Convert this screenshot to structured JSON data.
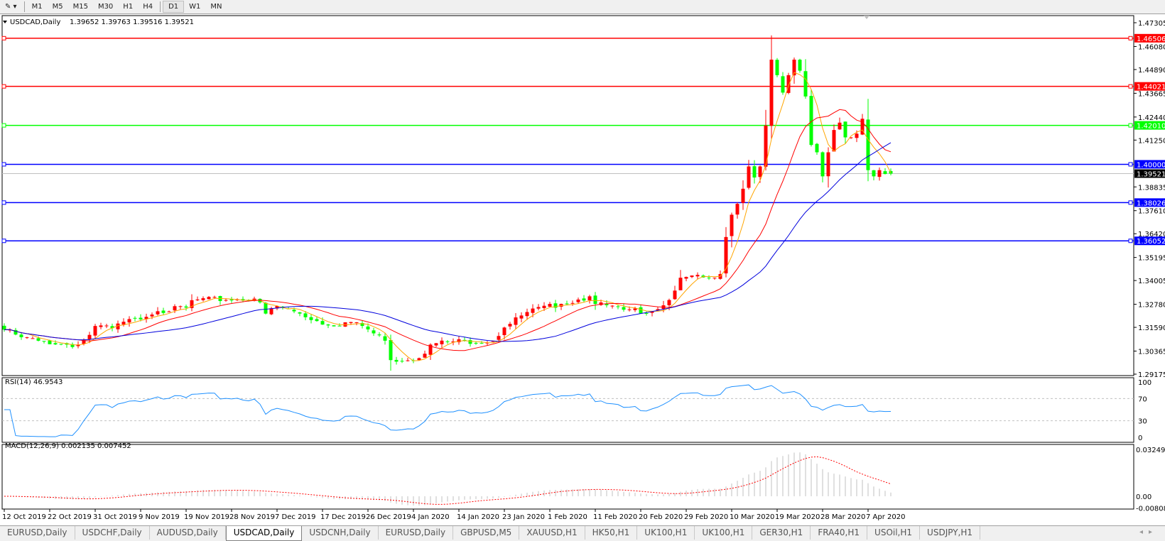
{
  "toolbar": {
    "periods": [
      "M1",
      "M5",
      "M15",
      "M30",
      "H1",
      "H4",
      "D1",
      "W1",
      "MN"
    ],
    "active_period": "D1"
  },
  "chart": {
    "title": "USDCAD,Daily",
    "ohlc_text": "1.39652 1.39763 1.39516 1.39521",
    "colors": {
      "bull": "#ff0000",
      "bear": "#00ff00",
      "ma_fast": "#ffa500",
      "ma_mid": "#ff0000",
      "ma_slow": "#0000dd",
      "rsi": "#1e90ff",
      "macd_hist": "#c0c0c0",
      "macd_signal": "#ff0000"
    }
  },
  "price_axis": {
    "ticks": [
      "1.47305",
      "1.46080",
      "1.44890",
      "1.43665",
      "1.42440",
      "1.41250",
      "1.38835",
      "1.37610",
      "1.36420",
      "1.35195",
      "1.34005",
      "1.32780",
      "1.31590",
      "1.30365",
      "1.29175"
    ],
    "range": [
      1.29175,
      1.47305
    ]
  },
  "levels": [
    {
      "price": "1.46506",
      "color": "#ff0000"
    },
    {
      "price": "1.44021",
      "color": "#ff0000"
    },
    {
      "price": "1.42010",
      "color": "#00ff00"
    },
    {
      "price": "1.40000",
      "color": "#0000ff"
    },
    {
      "price": "1.38026",
      "color": "#0000ff"
    },
    {
      "price": "1.36052",
      "color": "#0000ff"
    }
  ],
  "bid": {
    "price": "1.39521",
    "color": "#000000"
  },
  "rsi": {
    "label": "RSI(14) 46.9543",
    "ticks": [
      "100",
      "70",
      "30",
      "0"
    ]
  },
  "macd": {
    "label": "MACD(12,26,9) 0.002135 0.007452",
    "ticks": [
      "0.032493",
      "0.00",
      "-0.008086"
    ],
    "range": [
      -0.008086,
      0.032493
    ]
  },
  "date_axis": [
    "12 Oct 2019",
    "22 Oct 2019",
    "31 Oct 2019",
    "9 Nov 2019",
    "19 Nov 2019",
    "28 Nov 2019",
    "7 Dec 2019",
    "17 Dec 2019",
    "26 Dec 2019",
    "4 Jan 2020",
    "14 Jan 2020",
    "23 Jan 2020",
    "1 Feb 2020",
    "11 Feb 2020",
    "20 Feb 2020",
    "29 Feb 2020",
    "10 Mar 2020",
    "19 Mar 2020",
    "28 Mar 2020",
    "7 Apr 2020"
  ],
  "close_keypoints": [
    [
      0,
      1.3147
    ],
    [
      3,
      1.3108
    ],
    [
      6,
      1.309
    ],
    [
      11,
      1.307
    ],
    [
      13,
      1.307
    ],
    [
      15,
      1.312
    ],
    [
      16,
      1.3166
    ],
    [
      19,
      1.3155
    ],
    [
      23,
      1.3204
    ],
    [
      27,
      1.3242
    ],
    [
      32,
      1.3261
    ],
    [
      33,
      1.3299
    ],
    [
      44,
      1.3307
    ],
    [
      45,
      1.3288
    ],
    [
      46,
      1.323
    ],
    [
      48,
      1.3269
    ],
    [
      52,
      1.323
    ],
    [
      57,
      1.3169
    ],
    [
      60,
      1.3185
    ],
    [
      62,
      1.3185
    ],
    [
      65,
      1.3128
    ],
    [
      67,
      1.309
    ],
    [
      68,
      1.299
    ],
    [
      73,
      1.3
    ],
    [
      75,
      1.307
    ],
    [
      78,
      1.3085
    ],
    [
      86,
      1.309
    ],
    [
      88,
      1.3158
    ],
    [
      92,
      1.3238
    ],
    [
      98,
      1.328
    ],
    [
      103,
      1.3319
    ],
    [
      104,
      1.328
    ],
    [
      109,
      1.325
    ],
    [
      114,
      1.3242
    ],
    [
      117,
      1.33
    ],
    [
      119,
      1.3415
    ],
    [
      125,
      1.3415
    ],
    [
      126,
      1.3434
    ],
    [
      127,
      1.3625
    ],
    [
      128,
      1.374
    ],
    [
      130,
      1.3874
    ],
    [
      131,
      1.3989
    ],
    [
      132,
      1.3932
    ],
    [
      133,
      1.3989
    ],
    [
      134,
      1.42
    ],
    [
      135,
      1.454
    ],
    [
      136,
      1.446
    ],
    [
      137,
      1.437
    ],
    [
      138,
      1.446
    ],
    [
      139,
      1.454
    ],
    [
      140,
      1.4483
    ],
    [
      141,
      1.435
    ],
    [
      142,
      1.41
    ],
    [
      143,
      1.4062
    ],
    [
      144,
      1.3938
    ],
    [
      145,
      1.4062
    ],
    [
      146,
      1.4177
    ],
    [
      147,
      1.4215
    ],
    [
      148,
      1.4139
    ],
    [
      149,
      1.4139
    ],
    [
      150,
      1.4158
    ],
    [
      151,
      1.4235
    ],
    [
      152,
      1.397
    ],
    [
      153,
      1.3938
    ],
    [
      154,
      1.397
    ],
    [
      155,
      1.395
    ],
    [
      156,
      1.39521
    ]
  ],
  "tabs": [
    "EURUSD,Daily",
    "USDCHF,Daily",
    "AUDUSD,Daily",
    "USDCAD,Daily",
    "USDCNH,Daily",
    "EURUSD,Daily",
    "GBPUSD,M5",
    "XAUUSD,H1",
    "HK50,H1",
    "UK100,H1",
    "UK100,H1",
    "GER30,H1",
    "FRA40,H1",
    "USOil,H1",
    "USDJPY,H1"
  ],
  "active_tab": "USDCAD,Daily"
}
